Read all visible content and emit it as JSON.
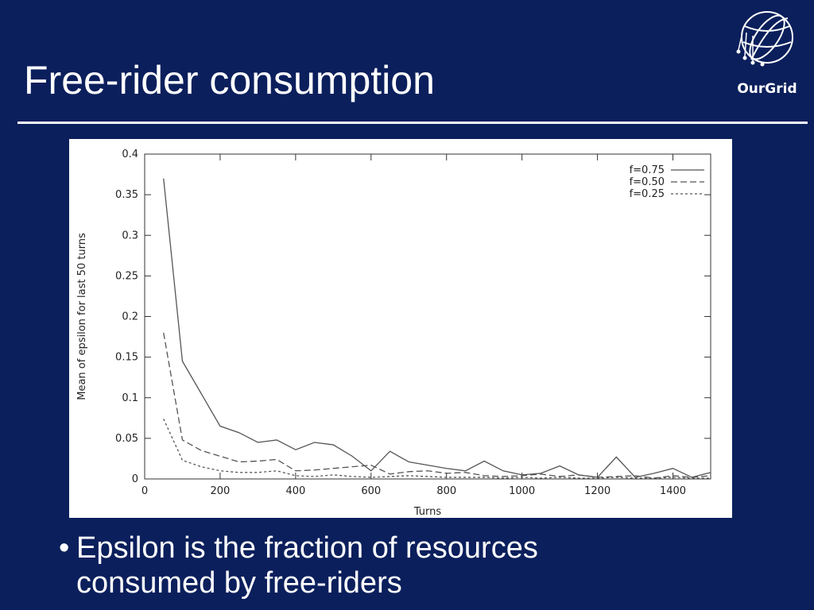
{
  "slide": {
    "title": "Free-rider consumption",
    "logo": "OurGrid",
    "bullet": "Epsilon is the fraction of resources consumed by free-riders"
  },
  "chart_data": {
    "type": "line",
    "x_label": "Turns",
    "y_label": "Mean of epsilon for last 50 turns",
    "x": [
      50,
      100,
      150,
      200,
      250,
      300,
      350,
      400,
      450,
      500,
      550,
      600,
      650,
      700,
      750,
      800,
      850,
      900,
      950,
      1000,
      1050,
      1100,
      1150,
      1200,
      1250,
      1300,
      1350,
      1400,
      1450,
      1500
    ],
    "series": [
      {
        "name": "f=0.75",
        "color": "#555555",
        "dash": "solid",
        "values": [
          0.37,
          0.145,
          0.105,
          0.065,
          0.057,
          0.045,
          0.048,
          0.036,
          0.045,
          0.042,
          0.028,
          0.01,
          0.034,
          0.021,
          0.017,
          0.013,
          0.01,
          0.022,
          0.01,
          0.005,
          0.007,
          0.016,
          0.005,
          0.002,
          0.027,
          0.002,
          0.007,
          0.013,
          0.002,
          0.008
        ]
      },
      {
        "name": "f=0.50",
        "color": "#555555",
        "dash": "dashed",
        "values": [
          0.18,
          0.048,
          0.035,
          0.028,
          0.021,
          0.022,
          0.024,
          0.01,
          0.011,
          0.013,
          0.015,
          0.017,
          0.006,
          0.009,
          0.01,
          0.007,
          0.008,
          0.004,
          0.003,
          0.004,
          0.006,
          0.003,
          0.005,
          0.002,
          0.003,
          0.004,
          0.001,
          0.004,
          0.002,
          0.004
        ]
      },
      {
        "name": "f=0.25",
        "color": "#555555",
        "dash": "dotted",
        "values": [
          0.074,
          0.023,
          0.015,
          0.01,
          0.008,
          0.008,
          0.01,
          0.004,
          0.003,
          0.005,
          0.003,
          0.002,
          0.003,
          0.004,
          0.003,
          0.002,
          0.002,
          0.002,
          0.001,
          0.002,
          0.001,
          0.002,
          0.001,
          0.001,
          0.002,
          0.001,
          0.001,
          0.002,
          0.001,
          0.001
        ]
      }
    ],
    "xlim": [
      0,
      1500
    ],
    "xticks": [
      0,
      200,
      400,
      600,
      800,
      1000,
      1200,
      1400
    ],
    "ylim": [
      0,
      0.4
    ],
    "yticks": [
      0,
      0.05,
      0.1,
      0.15,
      0.2,
      0.25,
      0.3,
      0.35,
      0.4
    ],
    "legend": "upper right"
  }
}
